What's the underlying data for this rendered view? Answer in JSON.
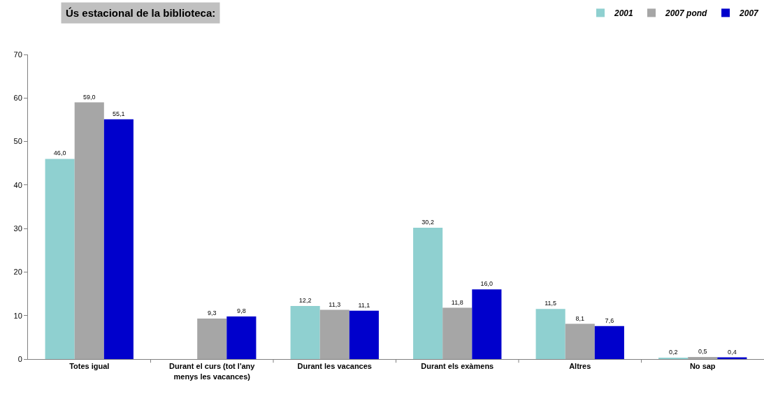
{
  "chart_data": {
    "type": "bar",
    "title": "Ús estacional de la biblioteca:",
    "categories": [
      "Totes igual",
      "Durant el curs (tot l'any menys les vacances)",
      "Durant les vacances",
      "Durant els exàmens",
      "Altres",
      "No sap"
    ],
    "series": [
      {
        "name": "2001",
        "color": "#8fd0d0",
        "values": [
          46.0,
          null,
          12.2,
          30.2,
          11.5,
          0.2
        ],
        "value_labels": [
          "46,0",
          null,
          "12,2",
          "30,2",
          "11,5",
          "0,2"
        ]
      },
      {
        "name": "2007 pond",
        "color": "#a6a6a6",
        "values": [
          59.0,
          9.3,
          11.3,
          11.8,
          8.1,
          0.5
        ],
        "value_labels": [
          "59,0",
          "9,3",
          "11,3",
          "11,8",
          "8,1",
          "0,5"
        ]
      },
      {
        "name": "2007",
        "color": "#0000cc",
        "values": [
          55.1,
          9.8,
          11.1,
          16.0,
          7.6,
          0.4
        ],
        "value_labels": [
          "55,1",
          "9,8",
          "11,1",
          "16,0",
          "7,6",
          "0,4"
        ]
      }
    ],
    "ylim": [
      0,
      70
    ],
    "yticks": [
      0,
      10,
      20,
      30,
      40,
      50,
      60,
      70
    ],
    "grid": false,
    "legend": "top right"
  }
}
